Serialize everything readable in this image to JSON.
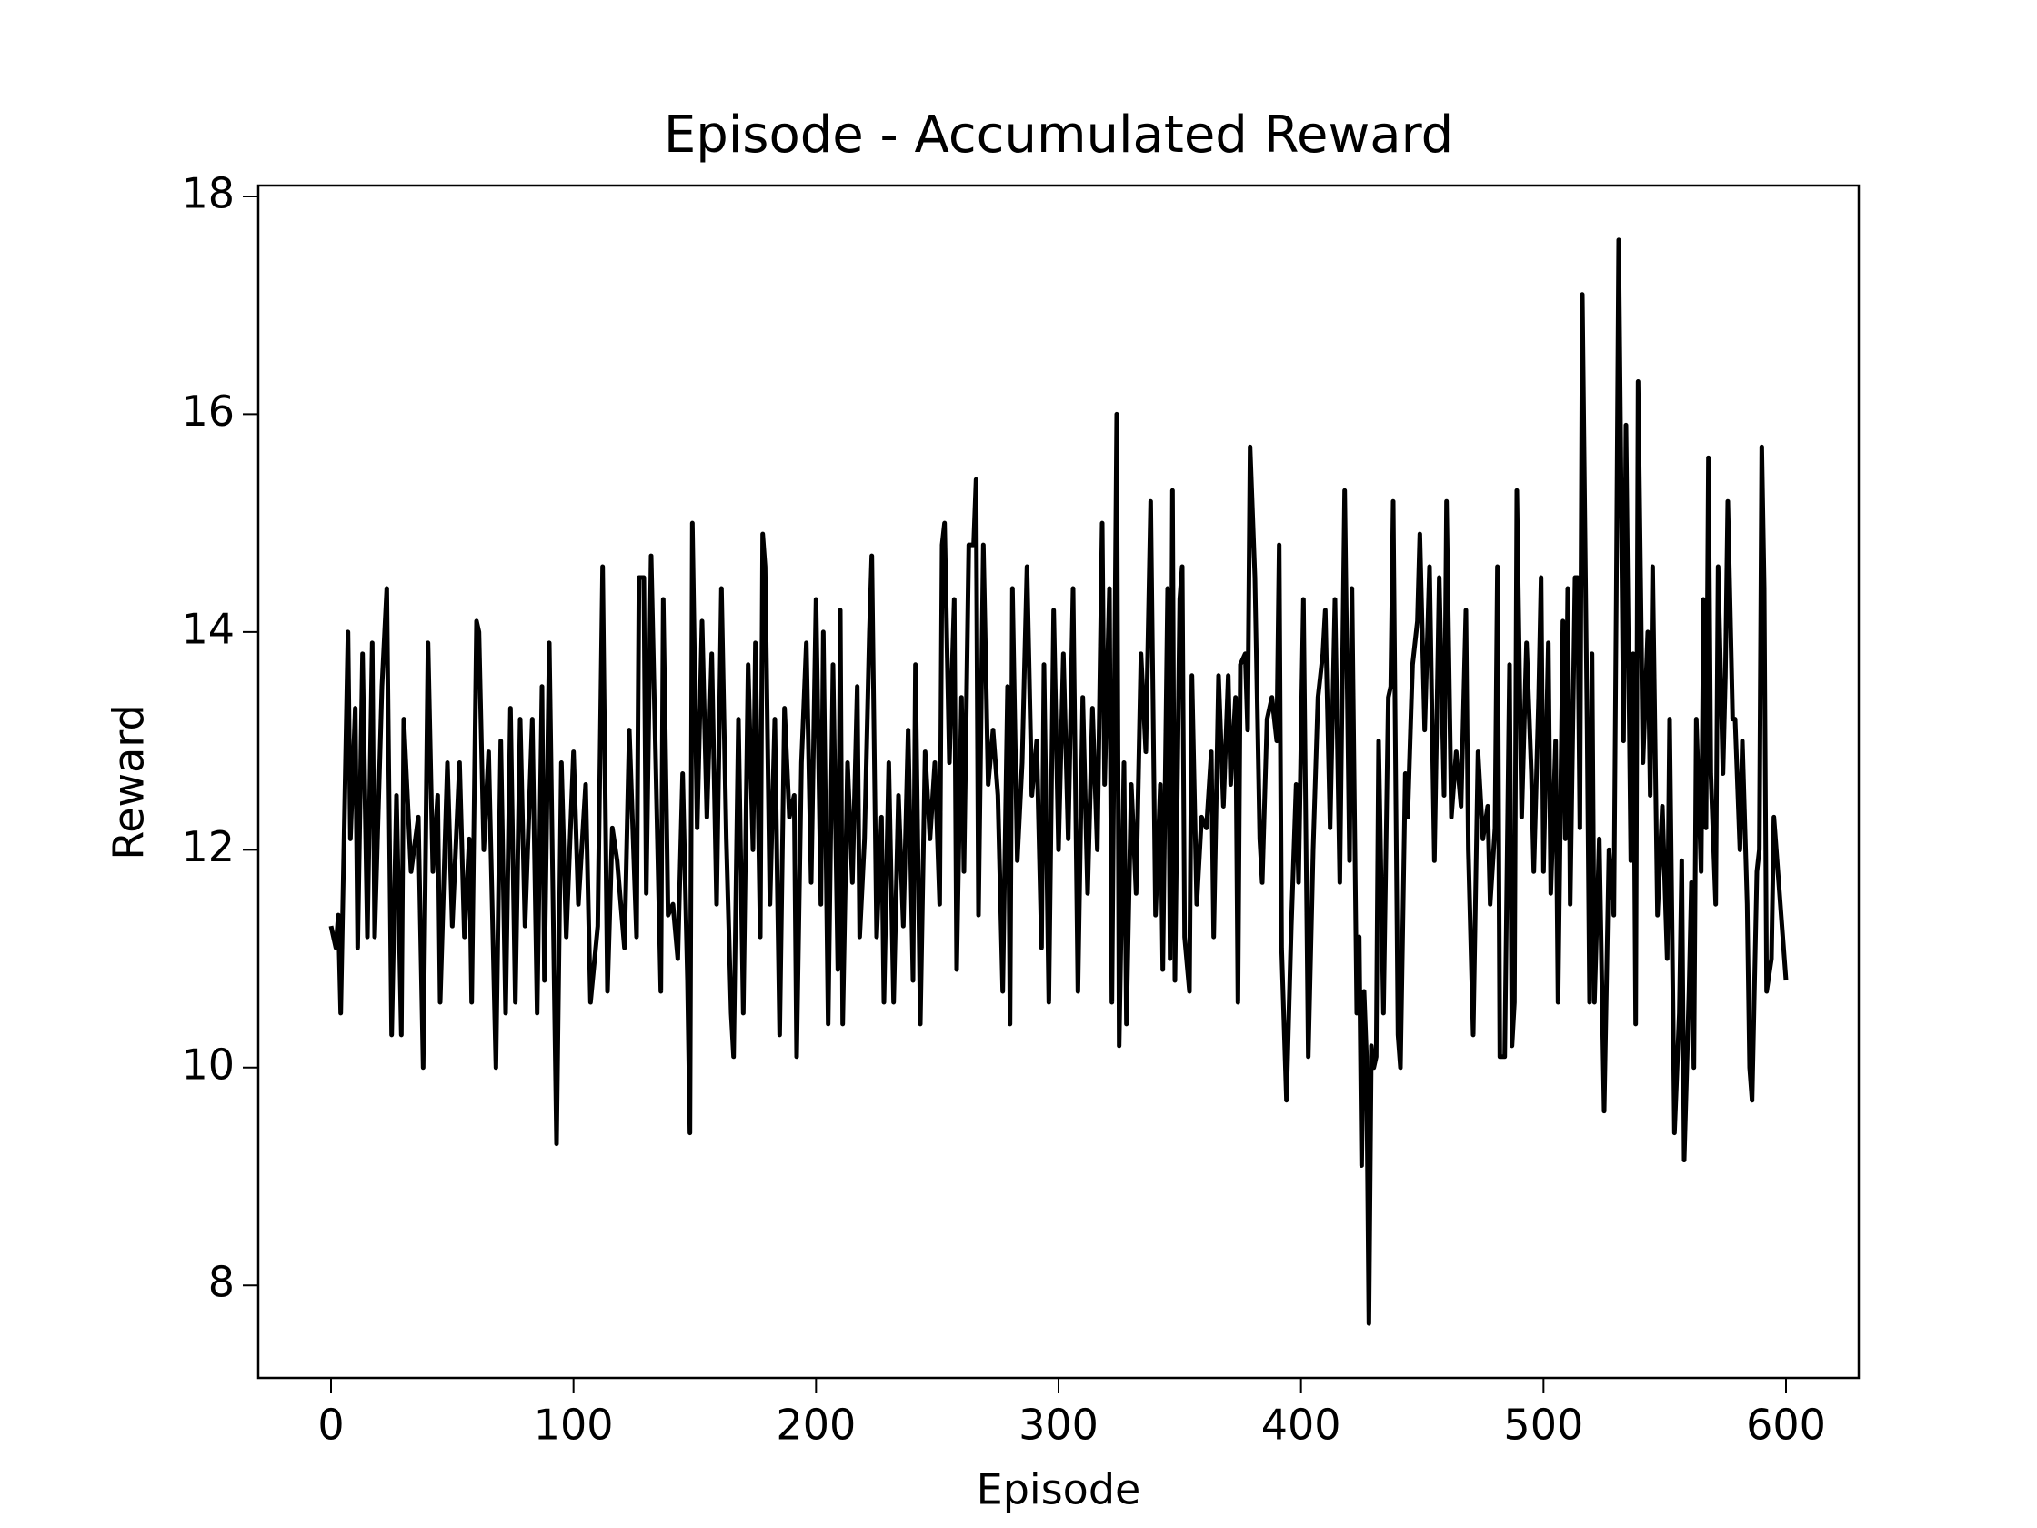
{
  "chart_data": {
    "type": "line",
    "title": "Episode - Accumulated Reward",
    "x_label": "Episode",
    "y_label": "Reward",
    "color": "#000000",
    "grid": false,
    "xlim": [
      -30,
      630
    ],
    "xticks": [
      0,
      100,
      200,
      300,
      400,
      500,
      600
    ],
    "ylim": [
      7.15,
      18.1
    ],
    "yticks": [
      8,
      10,
      12,
      14,
      16,
      18
    ],
    "x": [
      0,
      2,
      3,
      4,
      7,
      8,
      10,
      11,
      13,
      15,
      17,
      18,
      21,
      23,
      25,
      27,
      29,
      30,
      33,
      36,
      38,
      40,
      42,
      44,
      45,
      48,
      50,
      53,
      55,
      57,
      58,
      60,
      61,
      63,
      65,
      68,
      70,
      72,
      74,
      76,
      78,
      80,
      83,
      85,
      87,
      88,
      90,
      93,
      95,
      97,
      100,
      102,
      105,
      107,
      110,
      112,
      114,
      116,
      118,
      121,
      123,
      126,
      127,
      129,
      130,
      132,
      136,
      137,
      139,
      141,
      143,
      145,
      147,
      148,
      149,
      151,
      153,
      155,
      157,
      159,
      161,
      163,
      165,
      166,
      168,
      170,
      172,
      174,
      175,
      177,
      178,
      179,
      181,
      183,
      185,
      187,
      189,
      191,
      192,
      194,
      196,
      198,
      200,
      202,
      203,
      205,
      207,
      209,
      210,
      211,
      213,
      215,
      217,
      218,
      220,
      222,
      223,
      225,
      227,
      228,
      230,
      232,
      234,
      236,
      238,
      240,
      241,
      243,
      245,
      247,
      249,
      251,
      252,
      253,
      255,
      257,
      258,
      260,
      261,
      263,
      265,
      266,
      267,
      269,
      271,
      273,
      275,
      277,
      279,
      280,
      281,
      283,
      285,
      287,
      289,
      291,
      293,
      294,
      296,
      298,
      300,
      302,
      304,
      306,
      308,
      310,
      312,
      314,
      316,
      318,
      319,
      321,
      322,
      324,
      325,
      327,
      328,
      330,
      332,
      334,
      336,
      338,
      340,
      342,
      343,
      345,
      346,
      347,
      348,
      350,
      351,
      352,
      354,
      355,
      357,
      359,
      361,
      363,
      364,
      366,
      368,
      370,
      371,
      373,
      374,
      375,
      377,
      378,
      379,
      381,
      383,
      384,
      386,
      388,
      390,
      391,
      392,
      394,
      396,
      398,
      399,
      401,
      403,
      405,
      407,
      409,
      410,
      412,
      414,
      416,
      418,
      420,
      421,
      423,
      424,
      425,
      426,
      427,
      428,
      429,
      430,
      431,
      432,
      434,
      436,
      437,
      438,
      440,
      441,
      443,
      444,
      446,
      448,
      449,
      451,
      453,
      455,
      457,
      459,
      460,
      462,
      464,
      466,
      468,
      469,
      471,
      473,
      475,
      477,
      478,
      480,
      481,
      482,
      484,
      486,
      487,
      488,
      489,
      491,
      493,
      495,
      496,
      498,
      499,
      500,
      502,
      503,
      505,
      506,
      508,
      509,
      510,
      511,
      513,
      514,
      515,
      516,
      518,
      519,
      520,
      521,
      523,
      525,
      527,
      529,
      530,
      531,
      533,
      534,
      536,
      537,
      538,
      539,
      541,
      543,
      544,
      545,
      547,
      549,
      551,
      552,
      554,
      556,
      557,
      558,
      560,
      561,
      562,
      563,
      565,
      566,
      567,
      568,
      569,
      571,
      572,
      574,
      575,
      576,
      578,
      579,
      581,
      582,
      584,
      585,
      586,
      588,
      589,
      590,
      591,
      592,
      594,
      595,
      600
    ],
    "values": [
      11.3,
      11.1,
      11.4,
      10.5,
      14.0,
      12.1,
      13.3,
      11.1,
      13.8,
      11.2,
      13.9,
      11.2,
      13.5,
      14.4,
      10.3,
      12.5,
      10.3,
      13.2,
      11.8,
      12.3,
      10.0,
      13.9,
      11.8,
      12.5,
      10.6,
      12.8,
      11.3,
      12.8,
      11.2,
      12.1,
      10.6,
      14.1,
      14.0,
      12.0,
      12.9,
      10.0,
      13.0,
      10.5,
      13.3,
      10.6,
      13.2,
      11.3,
      13.2,
      10.5,
      13.5,
      10.8,
      13.9,
      9.3,
      12.8,
      11.2,
      12.9,
      11.5,
      12.6,
      10.6,
      11.3,
      14.6,
      10.7,
      12.2,
      11.9,
      11.1,
      13.1,
      11.2,
      14.5,
      14.5,
      11.6,
      14.7,
      10.7,
      14.3,
      11.4,
      11.5,
      11.0,
      12.7,
      10.8,
      9.4,
      15.0,
      12.2,
      14.1,
      12.3,
      13.8,
      11.5,
      14.4,
      12.1,
      10.5,
      10.1,
      13.2,
      10.5,
      13.7,
      12.0,
      13.9,
      11.2,
      14.9,
      14.6,
      11.5,
      13.2,
      10.3,
      13.3,
      12.3,
      12.5,
      10.1,
      12.8,
      13.9,
      11.7,
      14.3,
      11.5,
      14.0,
      10.4,
      13.7,
      10.9,
      14.2,
      10.4,
      12.8,
      11.7,
      13.5,
      11.2,
      12.1,
      14.0,
      14.7,
      11.2,
      12.3,
      10.6,
      12.8,
      10.6,
      12.5,
      11.3,
      13.1,
      10.8,
      13.7,
      10.4,
      12.9,
      12.1,
      12.8,
      11.5,
      14.8,
      15.0,
      12.8,
      14.3,
      10.9,
      13.4,
      11.8,
      14.8,
      14.8,
      15.4,
      11.4,
      14.8,
      12.6,
      13.1,
      12.5,
      10.7,
      13.5,
      10.4,
      14.4,
      11.9,
      12.8,
      14.6,
      12.5,
      13.0,
      11.1,
      13.7,
      10.6,
      14.2,
      12.0,
      13.8,
      12.1,
      14.4,
      10.7,
      13.4,
      11.6,
      13.3,
      12.0,
      15.0,
      12.6,
      14.4,
      10.6,
      16.0,
      10.2,
      12.8,
      10.4,
      12.6,
      11.6,
      13.8,
      12.9,
      15.2,
      11.4,
      12.6,
      10.9,
      14.4,
      11.0,
      15.3,
      10.8,
      14.3,
      14.6,
      11.2,
      10.7,
      13.6,
      11.5,
      12.3,
      12.2,
      12.9,
      11.2,
      13.6,
      12.4,
      13.6,
      12.6,
      13.4,
      10.6,
      13.7,
      13.8,
      13.1,
      15.7,
      14.5,
      12.1,
      11.7,
      13.2,
      13.4,
      13.0,
      14.8,
      11.1,
      9.7,
      11.3,
      12.6,
      11.7,
      14.3,
      10.1,
      12.0,
      13.4,
      13.8,
      14.2,
      12.2,
      14.3,
      11.7,
      15.3,
      11.9,
      14.4,
      10.5,
      11.2,
      9.1,
      10.7,
      10.1,
      7.65,
      10.2,
      10.0,
      10.1,
      13.0,
      10.5,
      13.4,
      13.5,
      15.2,
      10.3,
      10.0,
      12.7,
      12.3,
      13.7,
      14.1,
      14.9,
      13.1,
      14.6,
      11.9,
      14.5,
      12.5,
      15.2,
      12.3,
      12.9,
      12.4,
      14.2,
      12.0,
      10.3,
      12.9,
      12.1,
      12.4,
      11.5,
      12.2,
      14.6,
      10.1,
      10.1,
      13.7,
      10.2,
      10.6,
      15.3,
      12.3,
      13.9,
      12.7,
      11.8,
      13.4,
      14.5,
      11.8,
      13.9,
      11.6,
      13.0,
      10.6,
      14.1,
      12.1,
      14.4,
      11.5,
      14.5,
      14.5,
      12.2,
      17.1,
      13.1,
      10.6,
      13.8,
      10.6,
      12.1,
      9.6,
      12.0,
      11.4,
      14.3,
      17.6,
      13.0,
      15.9,
      11.9,
      13.8,
      10.4,
      16.3,
      12.8,
      14.0,
      12.5,
      14.6,
      11.4,
      12.4,
      11.0,
      13.2,
      9.4,
      10.5,
      11.9,
      9.15,
      10.7,
      11.7,
      10.0,
      13.2,
      11.8,
      14.3,
      12.2,
      15.6,
      12.7,
      11.5,
      14.6,
      12.7,
      13.6,
      15.2,
      13.2,
      13.2,
      12.0,
      13.0,
      11.5,
      10.0,
      9.7,
      11.8,
      12.0,
      15.7,
      14.4,
      10.7,
      11.0,
      12.3,
      10.8
    ]
  }
}
